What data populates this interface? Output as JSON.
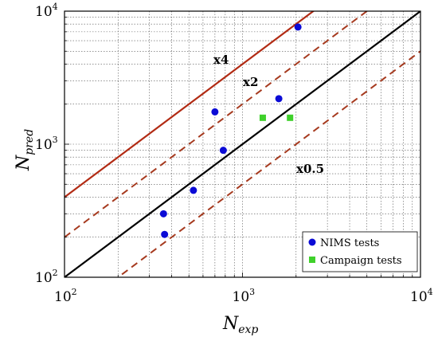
{
  "chart_data": {
    "type": "scatter",
    "title": "",
    "xlabel": {
      "base": "N",
      "sub": "exp"
    },
    "ylabel": {
      "base": "N",
      "sub": "pred"
    },
    "xscale": "log",
    "yscale": "log",
    "xlim": [
      100,
      10000
    ],
    "ylim": [
      100,
      10000
    ],
    "x_ticks": [
      {
        "base": "10",
        "exp": "2",
        "value": 100
      },
      {
        "base": "10",
        "exp": "3",
        "value": 1000
      },
      {
        "base": "10",
        "exp": "4",
        "value": 10000
      }
    ],
    "y_ticks": [
      {
        "base": "10",
        "exp": "2",
        "value": 100
      },
      {
        "base": "10",
        "exp": "3",
        "value": 1000
      },
      {
        "base": "10",
        "exp": "4",
        "value": 10000
      }
    ],
    "grid": true,
    "legend_position": "bottom-right",
    "series": [
      {
        "name": "NIMS tests",
        "marker": "circle",
        "color": "#0b0bd6",
        "points": [
          {
            "x": 360,
            "y": 300
          },
          {
            "x": 365,
            "y": 210
          },
          {
            "x": 530,
            "y": 450
          },
          {
            "x": 700,
            "y": 1750
          },
          {
            "x": 780,
            "y": 900
          },
          {
            "x": 1600,
            "y": 2200
          },
          {
            "x": 2050,
            "y": 7600
          }
        ]
      },
      {
        "name": "Campaign tests",
        "marker": "square",
        "color": "#3fd12b",
        "points": [
          {
            "x": 1300,
            "y": 1580
          },
          {
            "x": 1850,
            "y": 1580
          }
        ]
      }
    ],
    "reference_lines": [
      {
        "factor": 1,
        "style": "solid",
        "color": "#000000"
      },
      {
        "factor": 4,
        "style": "solid",
        "color": "#b22b14",
        "label": "x4"
      },
      {
        "factor": 2,
        "style": "dashed",
        "color": "#a63a1f",
        "label": "x2"
      },
      {
        "factor": 0.5,
        "style": "dashed",
        "color": "#a63a1f",
        "label": "x0.5"
      }
    ]
  }
}
